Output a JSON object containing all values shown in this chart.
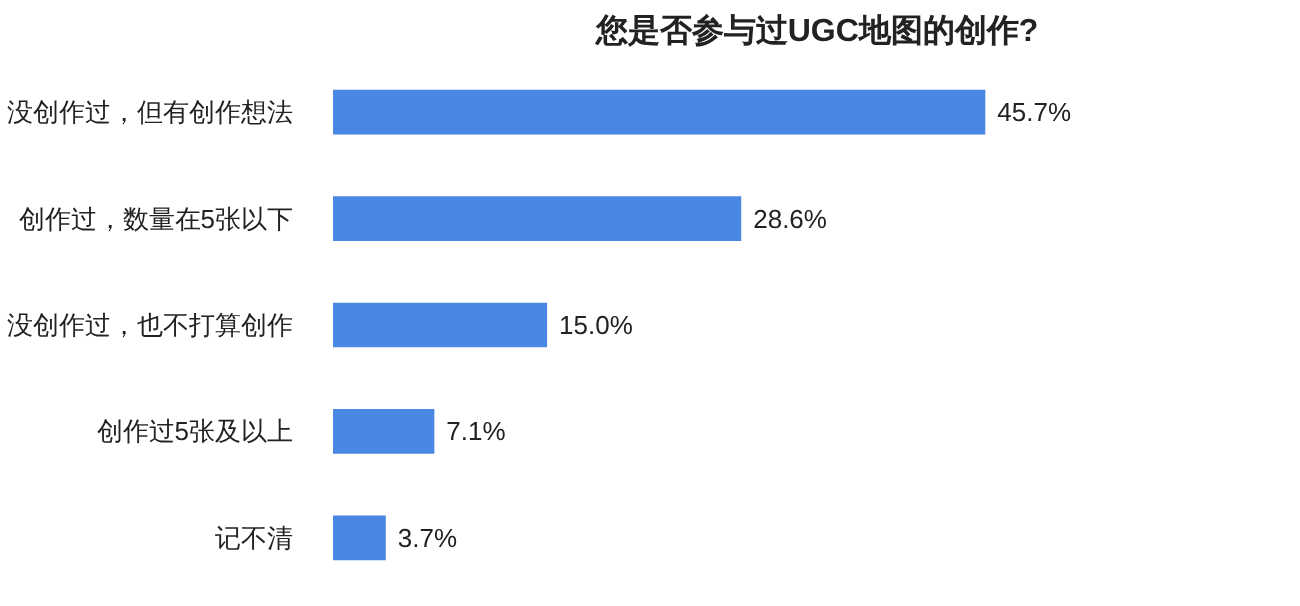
{
  "chart_data": {
    "type": "bar",
    "orientation": "horizontal",
    "title": "您是否参与过UGC地图的创作?",
    "categories": [
      "没创作过，但有创作想法",
      "创作过，数量在5张以下",
      "没创作过，也不打算创作",
      "创作过5张及以上",
      "记不清"
    ],
    "values": [
      45.7,
      28.6,
      15.0,
      7.1,
      3.7
    ],
    "value_labels": [
      "45.7%",
      "28.6%",
      "15.0%",
      "7.1%",
      "3.7%"
    ],
    "color": "#4a86e3"
  }
}
